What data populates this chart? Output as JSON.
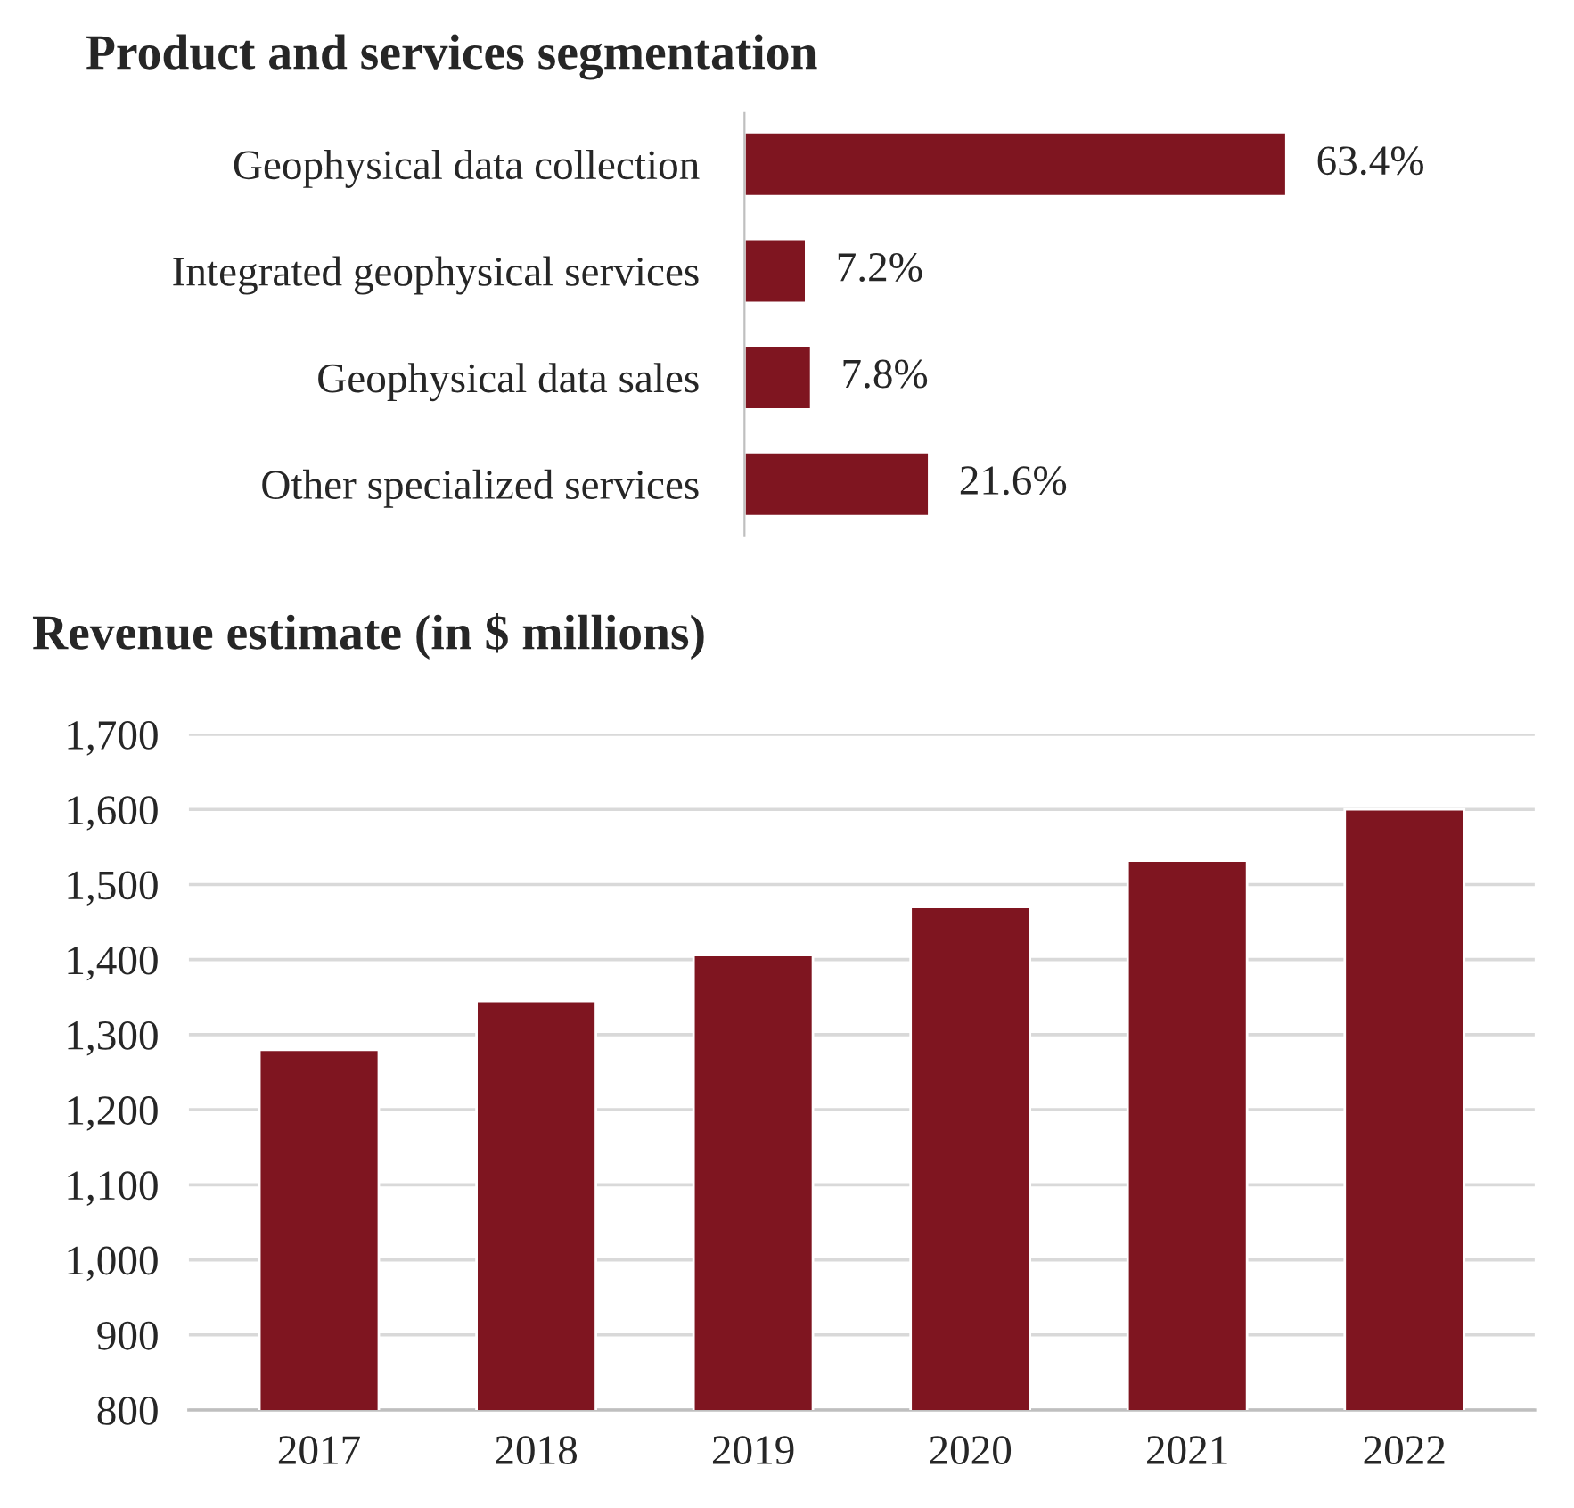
{
  "chart_data": [
    {
      "type": "bar",
      "title": "Product and services segmentation",
      "orientation": "horizontal",
      "categories": [
        "Geophysical data collection",
        "Integrated geophysical services",
        "Geophysical data sales",
        "Other specialized services"
      ],
      "values": [
        63.4,
        7.2,
        7.8,
        21.6
      ],
      "value_labels": [
        "63.4%",
        "7.2%",
        "7.8%",
        "21.6%"
      ],
      "color": "#7f1520",
      "grid": false,
      "legend": false,
      "tick_labels": "y"
    },
    {
      "type": "bar",
      "title": "Revenue estimate (in $ millions)",
      "categories": [
        "2017",
        "2018",
        "2019",
        "2020",
        "2021",
        "2022"
      ],
      "values": [
        1280,
        1345,
        1406,
        1470,
        1532,
        1600
      ],
      "color": "#7f1520",
      "ylim": [
        800,
        1700
      ],
      "yticks": [
        800,
        900,
        {
          "value": 1000,
          "label": "1,000"
        },
        {
          "value": 1100,
          "label": "1,100"
        },
        {
          "value": 1200,
          "label": "1,200"
        },
        {
          "value": 1300,
          "label": "1,300"
        },
        {
          "value": 1400,
          "label": "1,400"
        },
        {
          "value": 1500,
          "label": "1,500"
        },
        {
          "value": 1600,
          "label": "1,600"
        },
        {
          "value": 1700,
          "label": "1,700"
        }
      ],
      "grid": "y",
      "legend": false
    }
  ]
}
